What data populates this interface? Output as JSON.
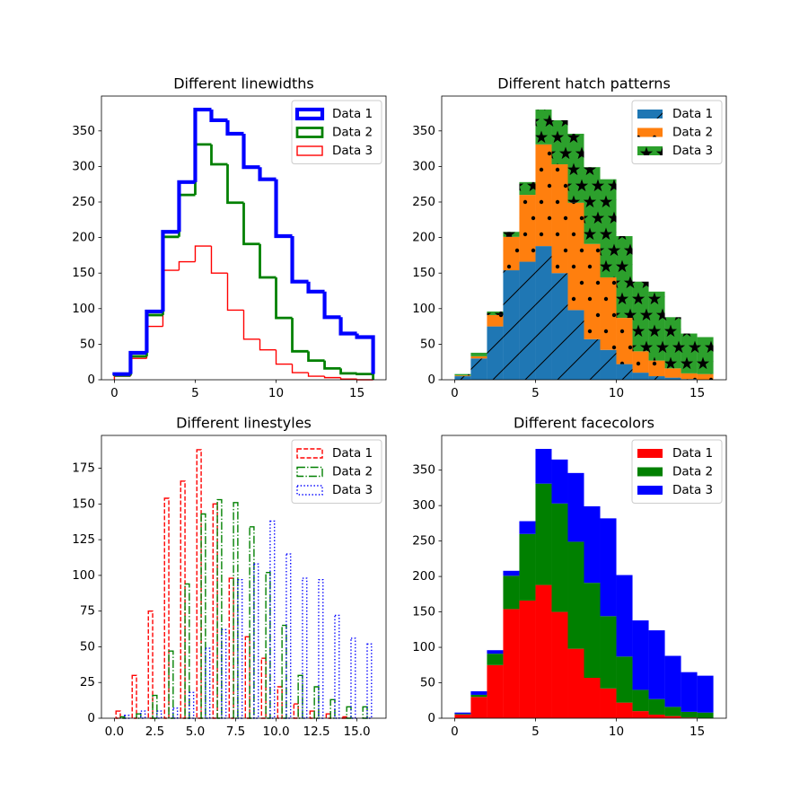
{
  "chart_data": [
    {
      "type": "histogram",
      "title": "Different linewidths",
      "histtype": "step",
      "stacked": true,
      "stack_from": "last",
      "fill": false,
      "bins": [
        0,
        1,
        2,
        3,
        4,
        5,
        6,
        7,
        8,
        9,
        10,
        11,
        12,
        13,
        14,
        15,
        16
      ],
      "series": [
        {
          "name": "Data 1",
          "color": "blue",
          "linewidth": 3,
          "values": [
            2,
            5,
            5,
            7,
            18,
            49,
            62,
            97,
            108,
            138,
            115,
            98,
            97,
            72,
            56,
            52
          ]
        },
        {
          "name": "Data 2",
          "color": "green",
          "linewidth": 2,
          "values": [
            1,
            3,
            16,
            47,
            94,
            143,
            153,
            151,
            134,
            102,
            65,
            30,
            22,
            13,
            8,
            8
          ]
        },
        {
          "name": "Data 3",
          "color": "red",
          "linewidth": 1,
          "values": [
            5,
            30,
            75,
            154,
            166,
            188,
            150,
            98,
            57,
            42,
            22,
            10,
            5,
            3,
            1,
            0
          ]
        }
      ],
      "xlim": [
        -0.8,
        16.8
      ],
      "xticks": [
        0,
        5,
        10,
        15
      ],
      "ylim": [
        0,
        399
      ],
      "yticks": [
        0,
        50,
        100,
        150,
        200,
        250,
        300,
        350
      ],
      "legend": "upper right"
    },
    {
      "type": "histogram",
      "title": "Different hatch patterns",
      "histtype": "bar",
      "stacked": true,
      "stack_from": "first",
      "fill": true,
      "bins": [
        0,
        1,
        2,
        3,
        4,
        5,
        6,
        7,
        8,
        9,
        10,
        11,
        12,
        13,
        14,
        15,
        16
      ],
      "series": [
        {
          "name": "Data 1",
          "color": "#1f77b4",
          "hatch": "/",
          "values": [
            5,
            30,
            75,
            154,
            166,
            188,
            150,
            98,
            57,
            42,
            22,
            10,
            5,
            3,
            1,
            0
          ]
        },
        {
          "name": "Data 2",
          "color": "#ff7f0e",
          "hatch": ".",
          "values": [
            1,
            3,
            16,
            47,
            94,
            143,
            153,
            151,
            134,
            102,
            65,
            30,
            22,
            13,
            8,
            8
          ]
        },
        {
          "name": "Data 3",
          "color": "#2ca02c",
          "hatch": "*",
          "values": [
            2,
            5,
            5,
            7,
            18,
            49,
            62,
            97,
            108,
            138,
            115,
            98,
            97,
            72,
            56,
            52
          ]
        }
      ],
      "xlim": [
        -0.8,
        16.8
      ],
      "xticks": [
        0,
        5,
        10,
        15
      ],
      "ylim": [
        0,
        399
      ],
      "yticks": [
        0,
        50,
        100,
        150,
        200,
        250,
        300,
        350
      ],
      "legend": "upper right"
    },
    {
      "type": "histogram",
      "title": "Different linestyles",
      "histtype": "bar",
      "stacked": false,
      "fill": false,
      "bins": [
        0,
        1,
        2,
        3,
        4,
        5,
        6,
        7,
        8,
        9,
        10,
        11,
        12,
        13,
        14,
        15,
        16
      ],
      "series": [
        {
          "name": "Data 1",
          "color": "red",
          "linestyle": "dashed",
          "values": [
            5,
            30,
            75,
            154,
            166,
            188,
            150,
            98,
            57,
            42,
            22,
            10,
            5,
            3,
            1,
            0
          ]
        },
        {
          "name": "Data 2",
          "color": "green",
          "linestyle": "dashdot",
          "values": [
            1,
            3,
            16,
            47,
            94,
            143,
            153,
            151,
            134,
            102,
            65,
            30,
            22,
            13,
            8,
            8
          ]
        },
        {
          "name": "Data 3",
          "color": "blue",
          "linestyle": "dotted",
          "values": [
            2,
            5,
            5,
            7,
            18,
            49,
            62,
            97,
            108,
            138,
            115,
            98,
            97,
            72,
            56,
            52
          ]
        }
      ],
      "xlim": [
        -0.8,
        16.8
      ],
      "xticks": [
        {
          "value": 0,
          "label": "0.0"
        },
        2.5,
        {
          "value": 5,
          "label": "5.0"
        },
        7.5,
        {
          "value": 10,
          "label": "10.0"
        },
        12.5,
        {
          "value": 15,
          "label": "15.0"
        }
      ],
      "ylim": [
        0,
        198
      ],
      "yticks": [
        0,
        25,
        50,
        75,
        100,
        125,
        150,
        175
      ],
      "legend": "upper right"
    },
    {
      "type": "histogram",
      "title": "Different facecolors",
      "histtype": "bar",
      "stacked": true,
      "stack_from": "first",
      "fill": true,
      "bins": [
        0,
        1,
        2,
        3,
        4,
        5,
        6,
        7,
        8,
        9,
        10,
        11,
        12,
        13,
        14,
        15,
        16
      ],
      "series": [
        {
          "name": "Data 1",
          "color": "red",
          "values": [
            5,
            30,
            75,
            154,
            166,
            188,
            150,
            98,
            57,
            42,
            22,
            10,
            5,
            3,
            1,
            0
          ]
        },
        {
          "name": "Data 2",
          "color": "green",
          "values": [
            1,
            3,
            16,
            47,
            94,
            143,
            153,
            151,
            134,
            102,
            65,
            30,
            22,
            13,
            8,
            8
          ]
        },
        {
          "name": "Data 3",
          "color": "blue",
          "values": [
            2,
            5,
            5,
            7,
            18,
            49,
            62,
            97,
            108,
            138,
            115,
            98,
            97,
            72,
            56,
            52
          ]
        }
      ],
      "xlim": [
        -0.8,
        16.8
      ],
      "xticks": [
        0,
        5,
        10,
        15
      ],
      "ylim": [
        0,
        399
      ],
      "yticks": [
        0,
        50,
        100,
        150,
        200,
        250,
        300,
        350
      ],
      "legend": "upper right"
    }
  ]
}
